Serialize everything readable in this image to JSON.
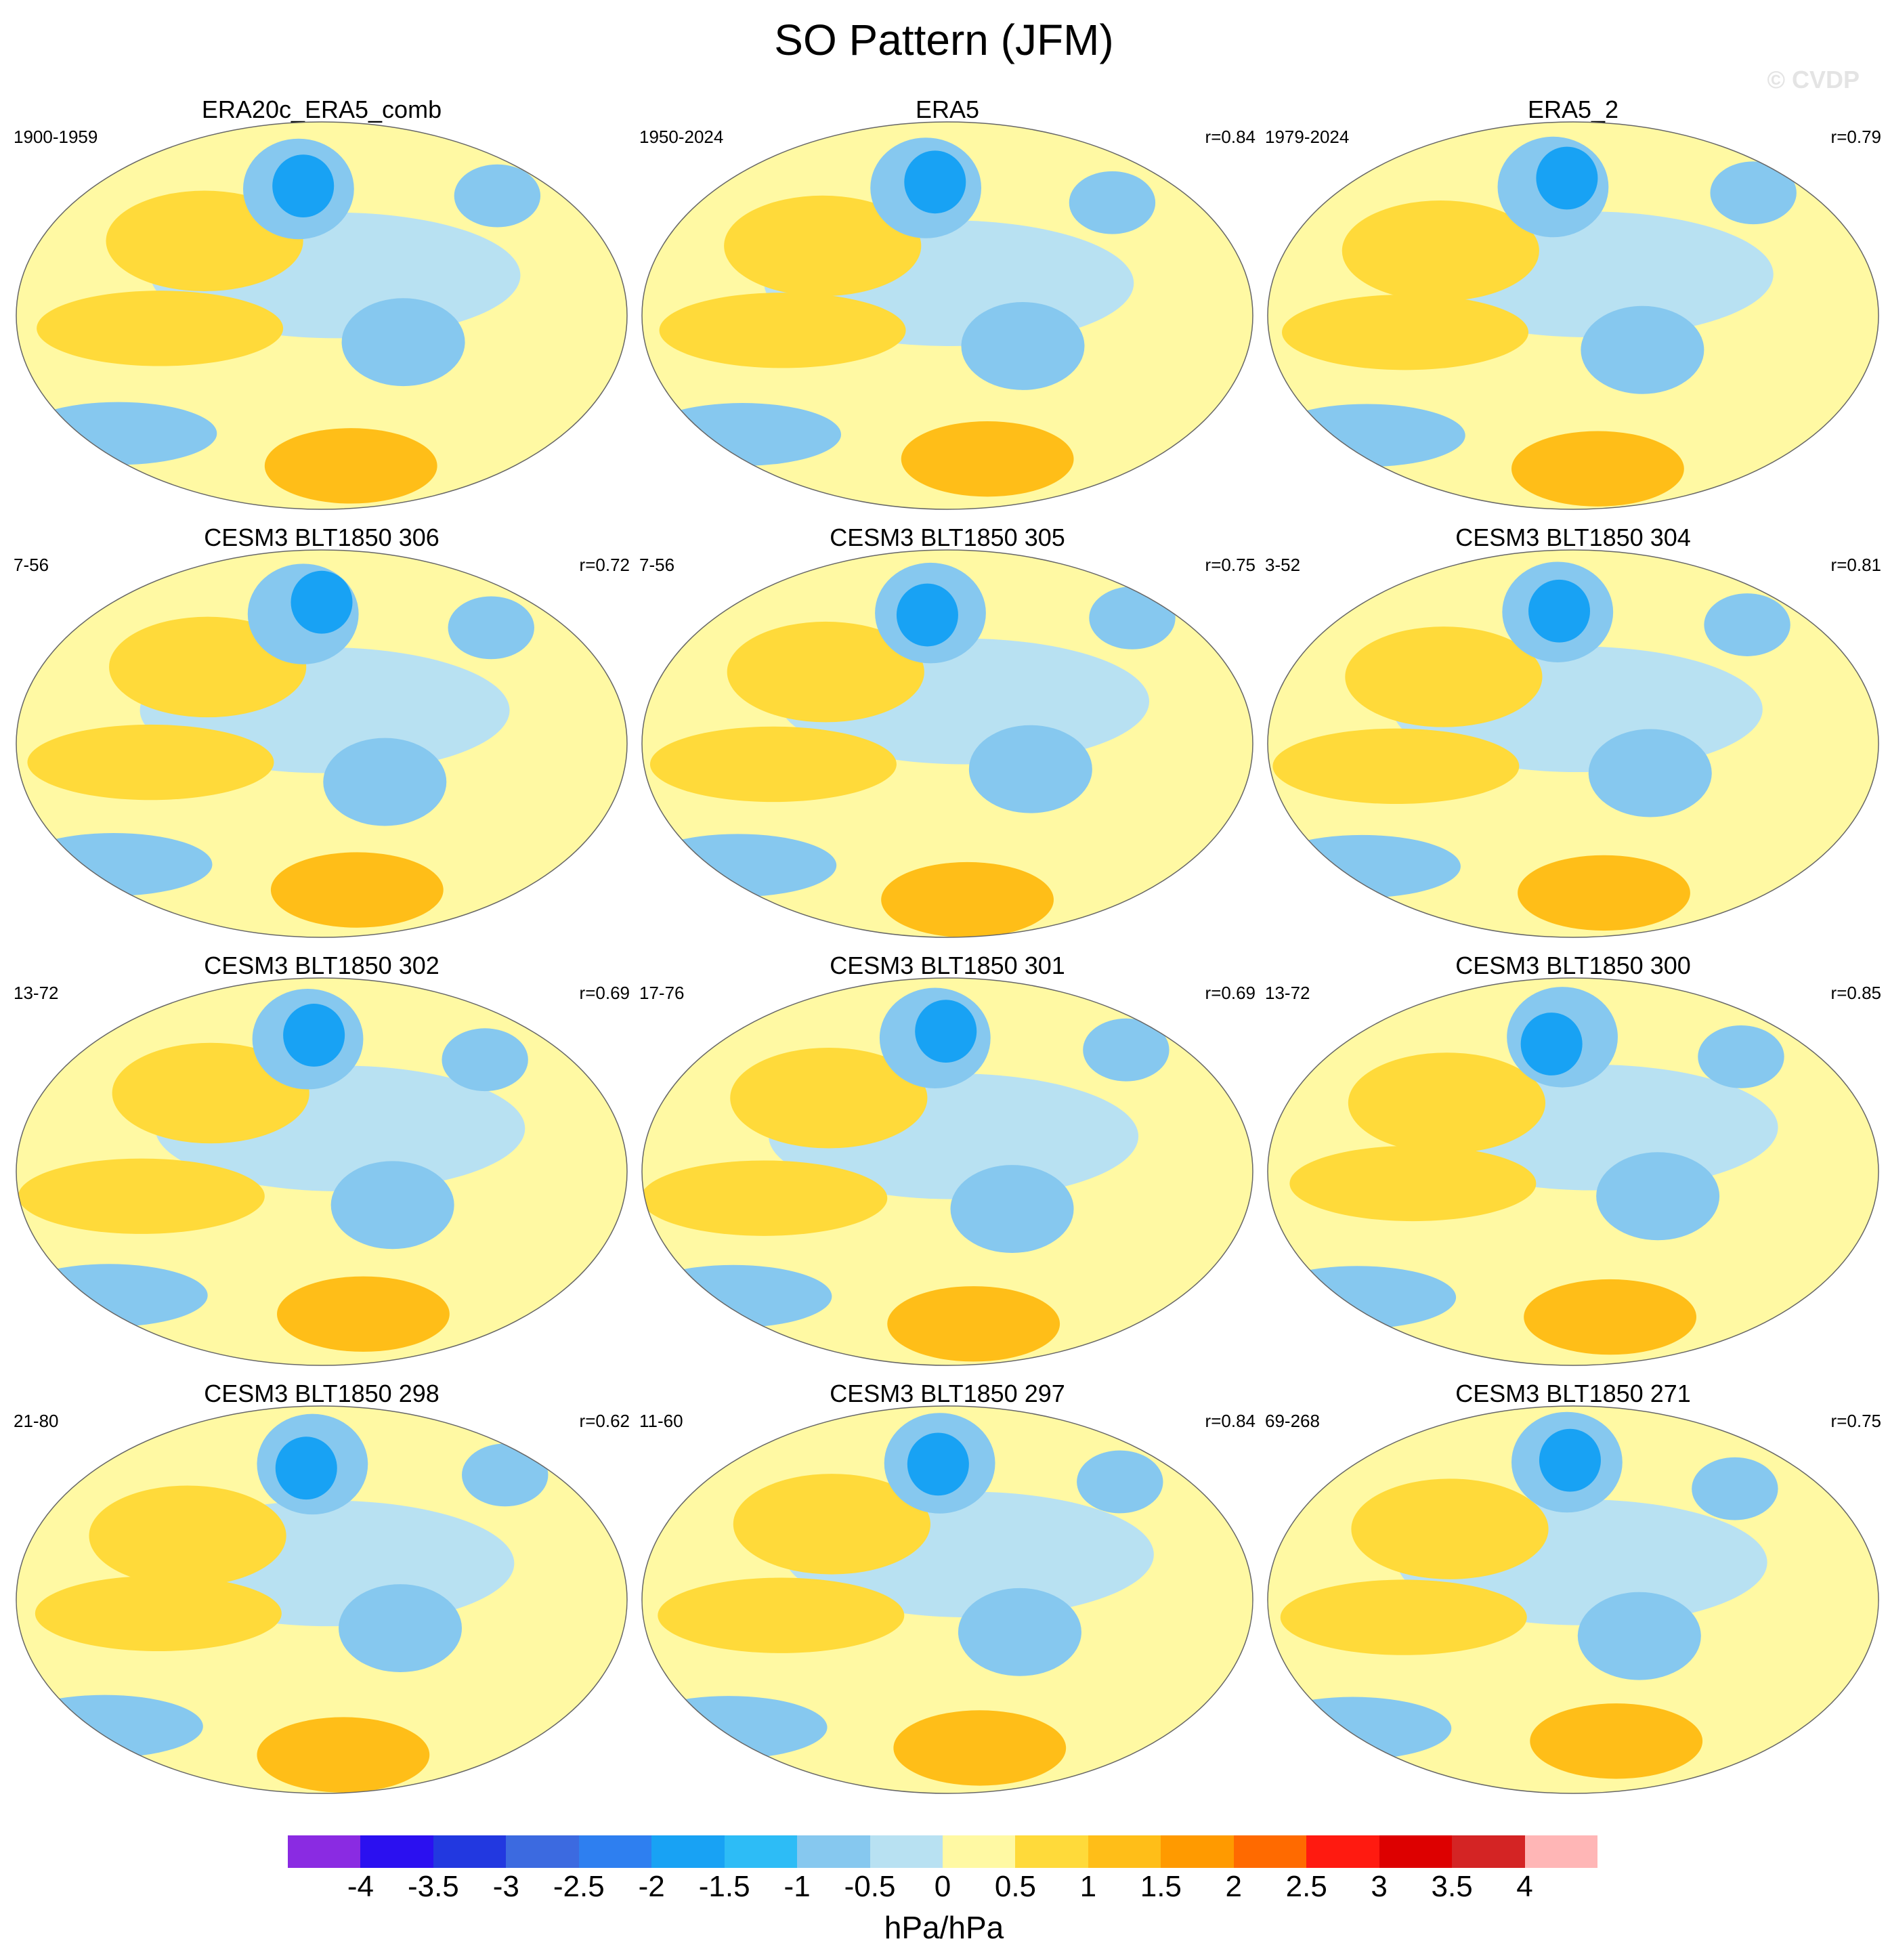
{
  "title": "SO Pattern (JFM)",
  "watermark": "© CVDP",
  "chart_data": {
    "type": "heatmap",
    "title": "SO Pattern (JFM)",
    "projection": "Robinson (Pacific-centered)",
    "variable": "sea level pressure regression",
    "units": "hPa/hPa",
    "colorbar": {
      "levels": [
        "-4",
        "-3.5",
        "-3",
        "-2.5",
        "-2",
        "-1.5",
        "-1",
        "-0.5",
        "0",
        "0.5",
        "1",
        "1.5",
        "2",
        "2.5",
        "3",
        "3.5",
        "4"
      ],
      "colors": [
        "#8a2be2",
        "#2b10f0",
        "#2238e0",
        "#3c6ae0",
        "#2e7ff0",
        "#18a2f4",
        "#2dbcf6",
        "#86c8ef",
        "#b8e1f2",
        "#fff9a3",
        "#ffda3a",
        "#ffbe18",
        "#ff9a00",
        "#ff6a00",
        "#ff1a10",
        "#dd0000",
        "#d42424",
        "#ffb6b6"
      ]
    },
    "panels": [
      {
        "name": "ERA20c_ERA5_comb",
        "years": "1900-1959",
        "r": ""
      },
      {
        "name": "ERA5",
        "years": "1950-2024",
        "r": "r=0.84"
      },
      {
        "name": "ERA5_2",
        "years": "1979-2024",
        "r": "r=0.79"
      },
      {
        "name": "CESM3 BLT1850 306",
        "years": "7-56",
        "r": "r=0.72"
      },
      {
        "name": "CESM3 BLT1850 305",
        "years": "7-56",
        "r": "r=0.75"
      },
      {
        "name": "CESM3 BLT1850 304",
        "years": "3-52",
        "r": "r=0.81"
      },
      {
        "name": "CESM3 BLT1850 302",
        "years": "13-72",
        "r": "r=0.69"
      },
      {
        "name": "CESM3 BLT1850 301",
        "years": "17-76",
        "r": "r=0.69"
      },
      {
        "name": "CESM3 BLT1850 300",
        "years": "13-72",
        "r": "r=0.85"
      },
      {
        "name": "CESM3 BLT1850 298",
        "years": "21-80",
        "r": "r=0.62"
      },
      {
        "name": "CESM3 BLT1850 297",
        "years": "11-60",
        "r": "r=0.84"
      },
      {
        "name": "CESM3 BLT1850 271",
        "years": "69-268",
        "r": "r=0.75"
      }
    ]
  }
}
